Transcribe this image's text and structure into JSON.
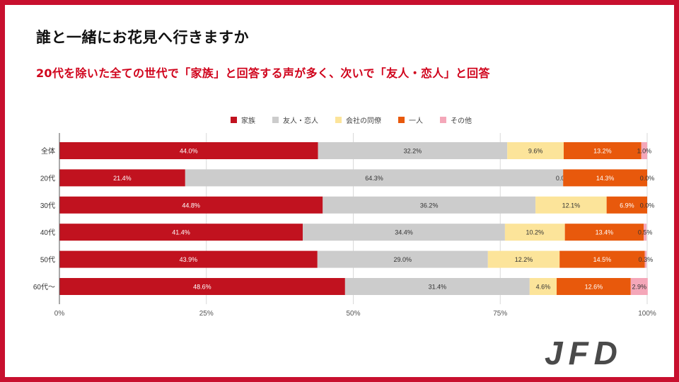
{
  "slide": {
    "title": "誰と一緒にお花見へ行きますか",
    "subtitle": "20代を除いた全ての世代で「家族」と回答する声が多く、次いで「友人・恋人」と回答",
    "logo_text": "JFD"
  },
  "colors": {
    "frame": "#c8102e",
    "subtitle": "#d0021b"
  },
  "chart_data": {
    "type": "bar",
    "orientation": "horizontal",
    "stacked": true,
    "title": "",
    "xlabel": "",
    "ylabel": "",
    "xlim": [
      0,
      100
    ],
    "x_ticks": [
      "0%",
      "25%",
      "50%",
      "75%",
      "100%"
    ],
    "legend_position": "top",
    "categories": [
      "全体",
      "20代",
      "30代",
      "40代",
      "50代",
      "60代〜"
    ],
    "series": [
      {
        "name": "家族",
        "color": "#c1121f",
        "label_color": "#ffffff",
        "values": [
          44.0,
          21.4,
          44.8,
          41.4,
          43.9,
          48.6
        ]
      },
      {
        "name": "友人・恋人",
        "color": "#cccccc",
        "label_color": "#333333",
        "values": [
          32.2,
          64.3,
          36.2,
          34.4,
          29.0,
          31.4
        ]
      },
      {
        "name": "会社の同僚",
        "color": "#fce49a",
        "label_color": "#333333",
        "values": [
          9.6,
          0.0,
          12.1,
          10.2,
          12.2,
          4.6
        ]
      },
      {
        "name": "一人",
        "color": "#e8590c",
        "label_color": "#ffffff",
        "values": [
          13.2,
          14.3,
          6.9,
          13.4,
          14.5,
          12.6
        ]
      },
      {
        "name": "その他",
        "color": "#f4a7b9",
        "label_color": "#333333",
        "values": [
          1.0,
          0.0,
          0.0,
          0.5,
          0.3,
          2.9
        ]
      }
    ]
  }
}
